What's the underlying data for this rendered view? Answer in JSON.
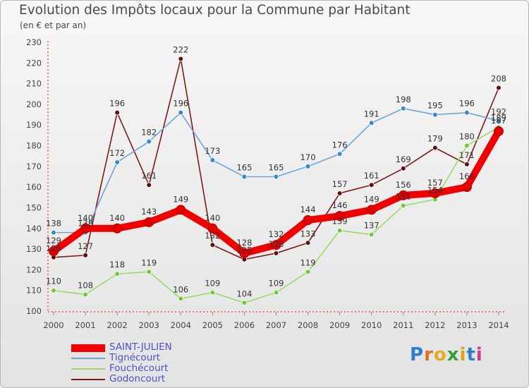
{
  "title": "Evolution des Impôts locaux pour la Commune par Habitant",
  "subtitle": "(en € et par an)",
  "logo": {
    "text": "Proxiti",
    "colors": [
      "#2e7ec8",
      "#e0701e",
      "#e8a820",
      "#3a9e3a",
      "#e0a020",
      "#2e7ec8",
      "#d03c8c"
    ]
  },
  "chart_data": {
    "type": "line",
    "x": [
      "2000",
      "2001",
      "2002",
      "2003",
      "2004",
      "2005",
      "2006",
      "2007",
      "2008",
      "2009",
      "2010",
      "2011",
      "2012",
      "2013",
      "2014"
    ],
    "ylim": [
      100,
      230
    ],
    "yticks": [
      100,
      110,
      120,
      130,
      140,
      150,
      160,
      170,
      180,
      190,
      200,
      210,
      220,
      230
    ],
    "grid": false,
    "legend": "bottom-left",
    "series": [
      {
        "name": "Godoncourt",
        "color": "#7a1a1a",
        "marker": "#5c1010",
        "values": [
          126,
          127,
          196,
          161,
          222,
          132,
          125,
          128,
          133,
          157,
          161,
          169,
          179,
          171,
          208
        ],
        "labels": [
          "126",
          "127",
          "196",
          "161",
          "222",
          "132",
          "125",
          "128",
          "133",
          "157",
          "161",
          "169",
          "179",
          "171",
          "208"
        ]
      },
      {
        "name": "Fouchécourt",
        "color": "#9ad86a",
        "marker": "#72c83a",
        "values": [
          110,
          108,
          118,
          119,
          106,
          109,
          104,
          109,
          119,
          139,
          137,
          151,
          154,
          180,
          189
        ],
        "labels": [
          "110",
          "108",
          "118",
          "119",
          "106",
          "109",
          "104",
          "109",
          "119",
          "139",
          "137",
          "151",
          "154",
          "180",
          "189"
        ]
      },
      {
        "name": "Tignécourt",
        "color": "#6aa6d8",
        "marker": "#3a86c8",
        "values": [
          138,
          138,
          172,
          182,
          196,
          173,
          165,
          165,
          170,
          176,
          191,
          198,
          195,
          196,
          192
        ],
        "labels": [
          "138",
          "138",
          "172",
          "182",
          "196",
          "173",
          "165",
          "165",
          "170",
          "176",
          "191",
          "198",
          "195",
          "196",
          "192"
        ]
      },
      {
        "name": "SAINT-JULIEN",
        "color": "#f00000",
        "marker": "#e00000",
        "values": [
          129,
          140,
          140,
          143,
          149,
          140,
          128,
          132,
          144,
          146,
          149,
          156,
          157,
          160,
          187
        ],
        "labels": [
          "129",
          "140",
          "140",
          "143",
          "149",
          "140",
          "128",
          "132",
          "144",
          "146",
          "149",
          "156",
          "157",
          "160",
          "187"
        ]
      }
    ]
  },
  "legend_items": [
    {
      "name": "SAINT-JULIEN",
      "color": "#f00000",
      "width": 11
    },
    {
      "name": "Tignécourt",
      "color": "#6aa6d8",
      "width": 2
    },
    {
      "name": "Fouchécourt",
      "color": "#9ad86a",
      "width": 2
    },
    {
      "name": "Godoncourt",
      "color": "#7a1a1a",
      "width": 2
    }
  ]
}
